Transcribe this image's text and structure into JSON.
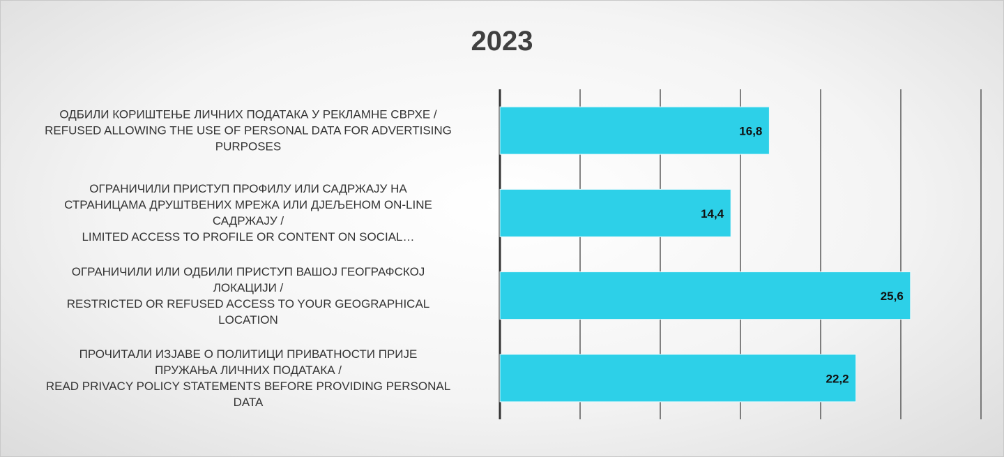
{
  "chart_data": {
    "type": "barh",
    "title": "2023",
    "categories": [
      "ОДБИЛИ КОРИШТЕЊЕ ЛИЧНИХ ПОДАТАКА У РЕКЛАМНЕ СВРХЕ /\nREFUSED ALLOWING THE USE OF PERSONAL DATA FOR ADVERTISING\nPURPOSES",
      "ОГРАНИЧИЛИ ПРИСТУП ПРОФИЛУ ИЛИ САДРЖАЈУ НА\nСТРАНИЦАМА ДРУШТВЕНИХ МРЕЖА ИЛИ ДЈЕЉЕНОМ ON-LINE\nСАДРЖАЈУ /\nLIMITED ACCESS TO PROFILE OR CONTENT ON SOCIAL…",
      "ОГРАНИЧИЛИ ИЛИ ОДБИЛИ ПРИСТУП ВАШОЈ ГЕОГРАФСКОЈ\nЛОКАЦИЈИ /\nRESTRICTED OR REFUSED ACCESS TO YOUR GEOGRAPHICAL\nLOCATION",
      "ПРОЧИТАЛИ ИЗЈАВЕ О ПОЛИТИЦИ ПРИВАТНОСТИ ПРИЈЕ\nПРУЖАЊА ЛИЧНИХ ПОДАТАКА /\nREAD PRIVACY POLICY STATEMENTS BEFORE PROVIDING PERSONAL\nDATA"
    ],
    "values": [
      16.8,
      14.4,
      25.6,
      22.2
    ],
    "value_labels": [
      "16,8",
      "14,4",
      "25,6",
      "22,2"
    ],
    "color": "#2dd0e8",
    "xlim": [
      0,
      30
    ],
    "xticks": [
      0,
      5,
      10,
      15,
      20,
      25,
      30
    ],
    "grid": true
  }
}
